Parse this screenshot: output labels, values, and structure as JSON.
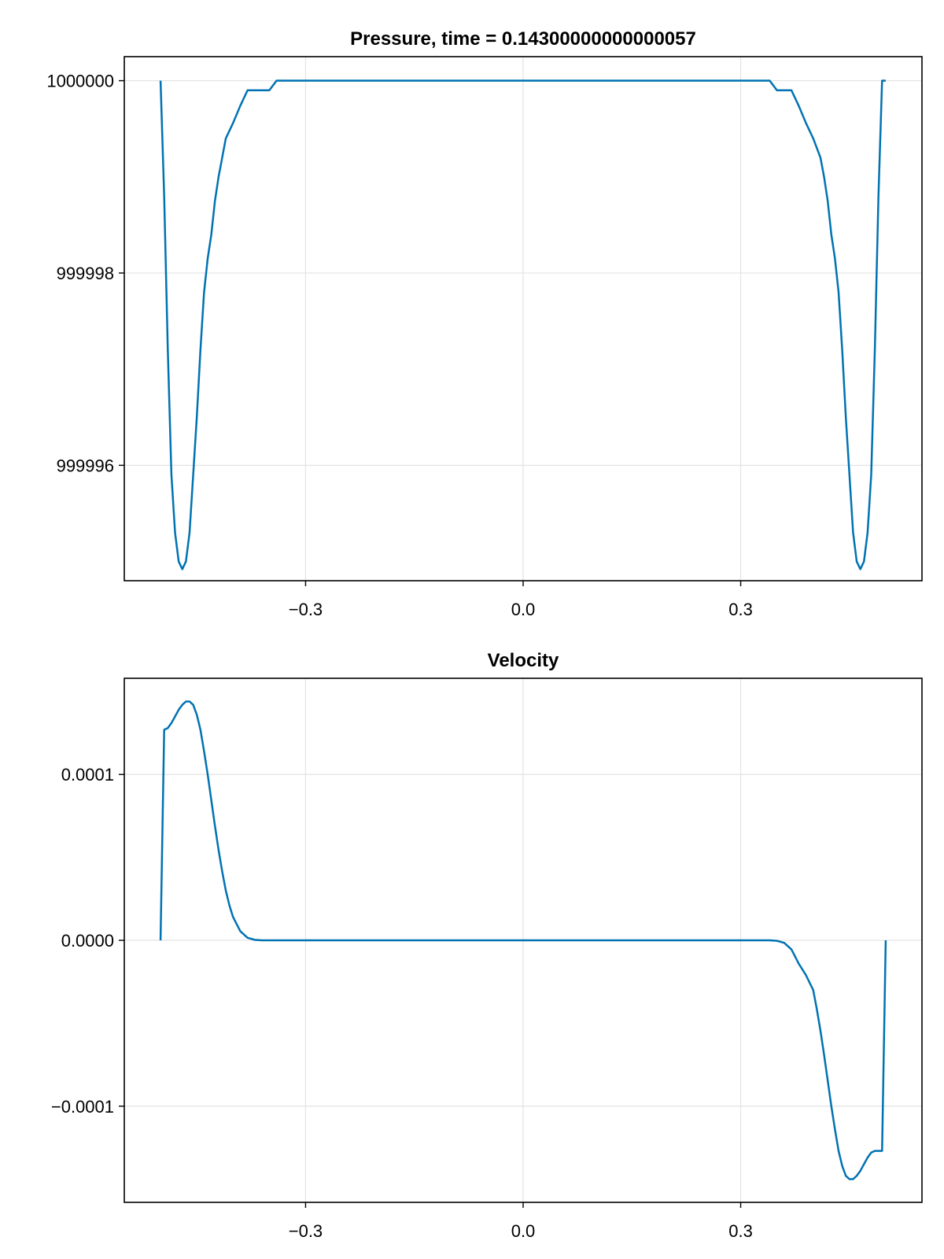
{
  "chart_data": [
    {
      "type": "line",
      "title": "Pressure, time = 0.14300000000000057",
      "xlabel": "",
      "ylabel": "",
      "xlim": [
        -0.55,
        0.55
      ],
      "ylim": [
        999994.8,
        1000000.25
      ],
      "xticks": [
        -0.3,
        0.0,
        0.3
      ],
      "xtick_labels": [
        "−0.3",
        "0.0",
        "0.3"
      ],
      "yticks": [
        999996,
        999998,
        1000000
      ],
      "ytick_labels": [
        "999996",
        "999998",
        "1000000"
      ],
      "grid": true,
      "color": "#0072b2",
      "series": [
        {
          "x": [
            -0.5,
            -0.495,
            -0.49,
            -0.485,
            -0.48,
            -0.475,
            -0.47,
            -0.465,
            -0.46,
            -0.455,
            -0.45,
            -0.445,
            -0.44,
            -0.435,
            -0.43,
            -0.425,
            -0.42,
            -0.415,
            -0.41,
            -0.4,
            -0.39,
            -0.38,
            -0.37,
            -0.36,
            -0.355,
            -0.35,
            -0.345,
            -0.34,
            -0.3,
            0.0,
            0.3,
            0.34,
            0.345,
            0.35,
            0.355,
            0.36,
            0.37,
            0.38,
            0.39,
            0.4,
            0.41,
            0.415,
            0.42,
            0.425,
            0.43,
            0.435,
            0.44,
            0.445,
            0.45,
            0.455,
            0.46,
            0.465,
            0.47,
            0.475,
            0.48,
            0.485,
            0.49,
            0.495,
            0.5
          ],
          "y": [
            1000000.0,
            999998.8,
            999997.2,
            999995.9,
            999995.3,
            999995.0,
            999994.92,
            999995.0,
            999995.3,
            999995.9,
            999996.5,
            999997.2,
            999997.8,
            999998.15,
            999998.4,
            999998.75,
            999999.0,
            999999.2,
            999999.4,
            999999.56,
            999999.74,
            999999.9,
            999999.9,
            999999.9,
            999999.9,
            999999.9,
            999999.95,
            1000000.0,
            1000000.0,
            1000000.0,
            1000000.0,
            1000000.0,
            999999.95,
            999999.9,
            999999.9,
            999999.9,
            999999.9,
            999999.74,
            999999.56,
            999999.4,
            999999.2,
            999999.0,
            999998.75,
            999998.4,
            999998.15,
            999997.8,
            999997.2,
            999996.5,
            999995.9,
            999995.3,
            999995.0,
            999994.92,
            999995.0,
            999995.3,
            999995.9,
            999997.2,
            999998.8,
            1000000.0,
            1000000.0
          ]
        }
      ]
    },
    {
      "type": "line",
      "title": "Velocity",
      "xlabel": "",
      "ylabel": "",
      "xlim": [
        -0.55,
        0.55
      ],
      "ylim": [
        -0.000158,
        0.000158
      ],
      "xticks": [
        -0.3,
        0.0,
        0.3
      ],
      "xtick_labels": [
        "−0.3",
        "0.0",
        "0.3"
      ],
      "yticks": [
        -0.0001,
        0.0,
        0.0001
      ],
      "ytick_labels": [
        "−0.0001",
        "0.0000",
        "0.0001"
      ],
      "grid": true,
      "color": "#0072b2",
      "series": [
        {
          "x": [
            -0.5,
            -0.495,
            -0.49,
            -0.485,
            -0.48,
            -0.475,
            -0.47,
            -0.465,
            -0.46,
            -0.455,
            -0.45,
            -0.445,
            -0.44,
            -0.435,
            -0.43,
            -0.425,
            -0.42,
            -0.415,
            -0.41,
            -0.405,
            -0.4,
            -0.39,
            -0.38,
            -0.37,
            -0.36,
            -0.35,
            -0.34,
            -0.3,
            0.0,
            0.3,
            0.34,
            0.35,
            0.36,
            0.37,
            0.38,
            0.39,
            0.4,
            0.405,
            0.41,
            0.415,
            0.42,
            0.425,
            0.43,
            0.435,
            0.44,
            0.445,
            0.45,
            0.455,
            0.46,
            0.465,
            0.47,
            0.475,
            0.48,
            0.485,
            0.49,
            0.495,
            0.5
          ],
          "y": [
            0.0,
            0.000127,
            0.000128,
            0.000131,
            0.000135,
            0.000139,
            0.000142,
            0.000144,
            0.000144,
            0.000142,
            0.000136,
            0.000127,
            0.000114,
            0.0001,
            8.45e-05,
            6.9e-05,
            5.45e-05,
            4.15e-05,
            3e-05,
            2.1e-05,
            1.4e-05,
            5.5e-06,
            1.5e-06,
            3e-07,
            0.0,
            0.0,
            0.0,
            0.0,
            0.0,
            0.0,
            0.0,
            -3e-07,
            -1.5e-06,
            -5.5e-06,
            -1.4e-05,
            -2.1e-05,
            -3e-05,
            -4.15e-05,
            -5.45e-05,
            -6.9e-05,
            -8.45e-05,
            -0.0001,
            -0.000114,
            -0.000127,
            -0.000136,
            -0.000142,
            -0.000144,
            -0.000144,
            -0.000142,
            -0.000139,
            -0.000135,
            -0.000131,
            -0.000128,
            -0.000127,
            -0.000127,
            -0.000127,
            0.0
          ]
        }
      ]
    }
  ]
}
